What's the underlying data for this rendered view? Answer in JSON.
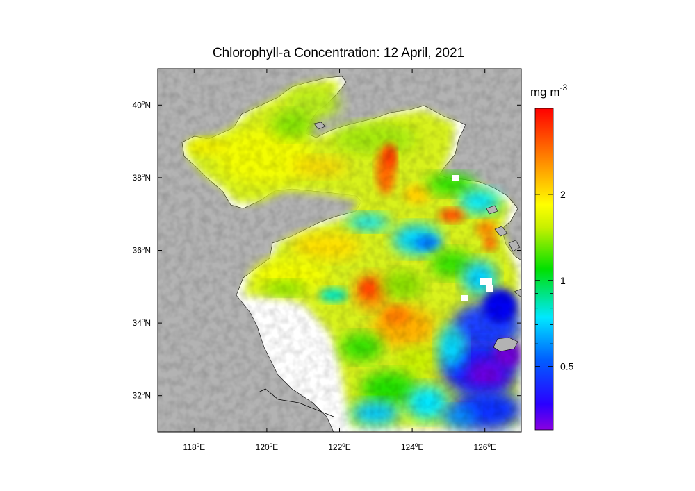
{
  "title": "Chlorophyll-a Concentration: 12 April, 2021",
  "colorbar": {
    "unit_base": "mg m",
    "unit_exp": "-3",
    "ticks": [
      {
        "value": 2,
        "label": "2"
      },
      {
        "value": 1,
        "label": "1"
      },
      {
        "value": 0.5,
        "label": "0.5"
      }
    ],
    "min": 0.3,
    "max": 4.0,
    "scale": "log"
  },
  "x_axis": {
    "ticks": [
      {
        "deg": 118,
        "label": "118",
        "hem": "E"
      },
      {
        "deg": 120,
        "label": "120",
        "hem": "E"
      },
      {
        "deg": 122,
        "label": "122",
        "hem": "E"
      },
      {
        "deg": 124,
        "label": "124",
        "hem": "E"
      },
      {
        "deg": 126,
        "label": "126",
        "hem": "E"
      }
    ],
    "range": [
      117,
      127
    ]
  },
  "y_axis": {
    "ticks": [
      {
        "deg": 40,
        "label": "40",
        "hem": "N"
      },
      {
        "deg": 38,
        "label": "38",
        "hem": "N"
      },
      {
        "deg": 36,
        "label": "36",
        "hem": "N"
      },
      {
        "deg": 34,
        "label": "34",
        "hem": "N"
      },
      {
        "deg": 32,
        "label": "32",
        "hem": "N"
      }
    ],
    "range": [
      31,
      41
    ]
  },
  "colors": {
    "land": "#b3b3b3",
    "no_data": "#ffffff",
    "colormap": [
      "#7a00d8",
      "#0000ff",
      "#00e6ff",
      "#00e000",
      "#ffff00",
      "#ff8000",
      "#ff0000"
    ]
  }
}
